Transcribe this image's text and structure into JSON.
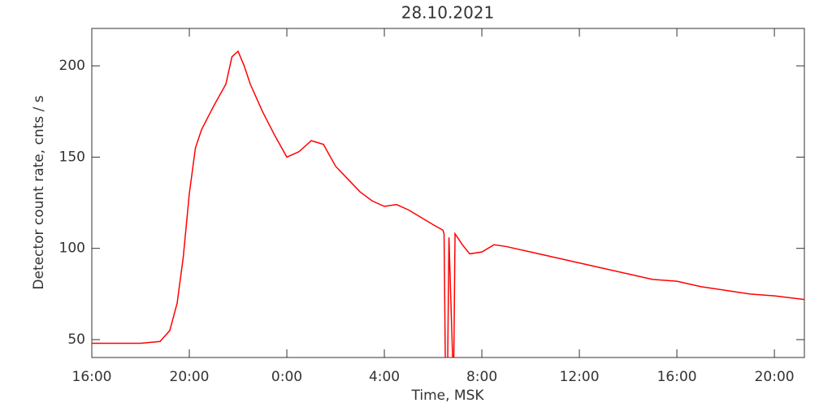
{
  "chart_data": {
    "type": "line",
    "title": "28.10.2021",
    "x_label": "Time, MSK",
    "y_label": "Detector count rate, cnts / s",
    "xlim": [
      16,
      45.23
    ],
    "ylim": [
      40.2,
      220.5
    ],
    "xticks": [
      {
        "value": 16,
        "label": "16:00"
      },
      {
        "value": 20,
        "label": "20:00"
      },
      {
        "value": 24,
        "label": "0:00"
      },
      {
        "value": 28,
        "label": "4:00"
      },
      {
        "value": 32,
        "label": "8:00"
      },
      {
        "value": 36,
        "label": "12:00"
      },
      {
        "value": 40,
        "label": "16:00"
      },
      {
        "value": 44,
        "label": "20:00"
      }
    ],
    "yticks": [
      50,
      100,
      150,
      200
    ],
    "series": [
      {
        "color": "#ff0000",
        "x": [
          16,
          17,
          18,
          18.8,
          19.2,
          19.5,
          19.75,
          20,
          20.25,
          20.5,
          21,
          21.5,
          21.75,
          22,
          22.25,
          22.5,
          23,
          23.5,
          24,
          24.5,
          25,
          25.5,
          26,
          26.5,
          27,
          27.5,
          28,
          28.5,
          29,
          29.5,
          30,
          30.4,
          30.45,
          30.5,
          30.6,
          30.65,
          30.8,
          30.85,
          30.9,
          31.2,
          31.5,
          32,
          32.5,
          33,
          34,
          35,
          36,
          37,
          38,
          39,
          40,
          41,
          42,
          43,
          44,
          45.23
        ],
        "values": [
          48,
          48,
          48,
          49,
          55,
          70,
          95,
          130,
          155,
          165,
          178,
          190,
          205,
          208,
          200,
          190,
          175,
          162,
          150,
          153,
          159,
          157,
          145,
          138,
          131,
          126,
          123,
          124,
          121,
          117,
          113,
          110,
          108,
          40,
          40,
          106,
          40,
          40,
          108,
          102,
          97,
          98,
          102,
          101,
          98,
          95,
          92,
          89,
          86,
          83,
          82,
          79,
          77,
          75,
          74,
          72
        ]
      }
    ]
  }
}
